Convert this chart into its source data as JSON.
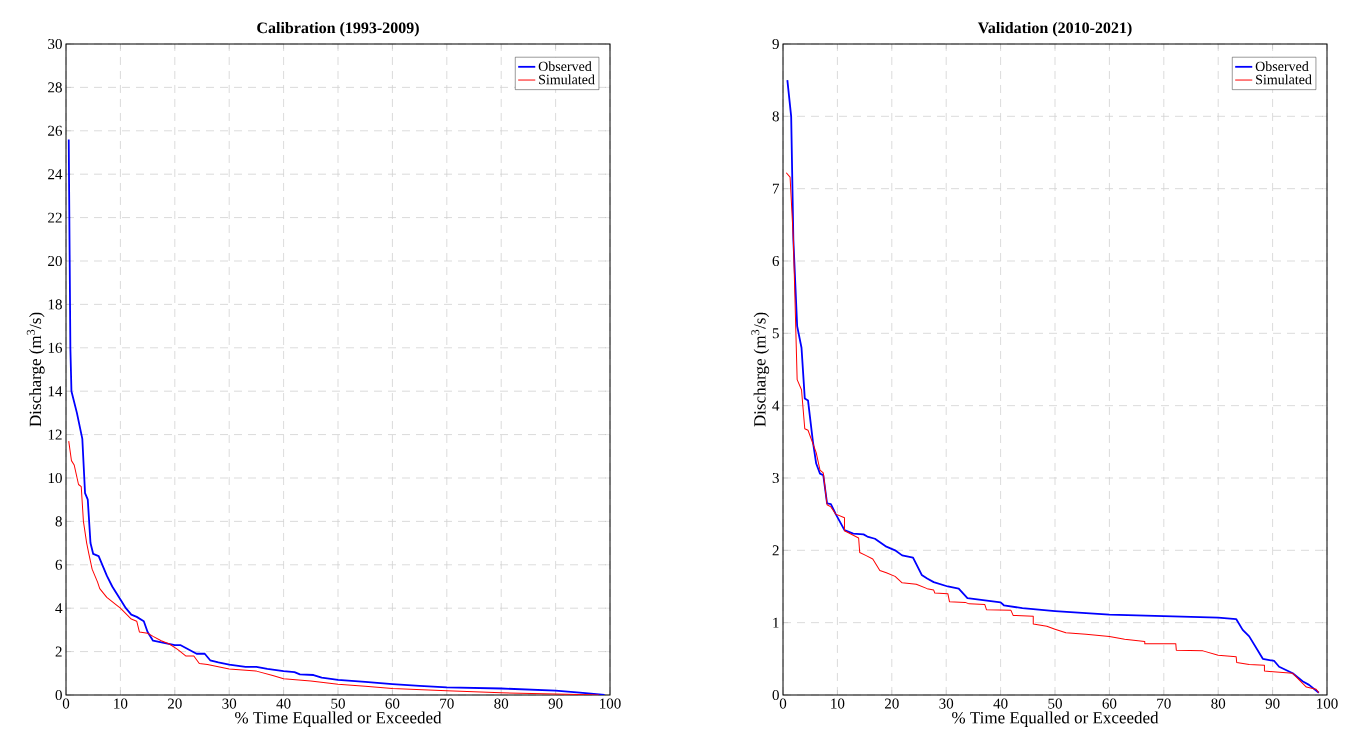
{
  "chart_data": [
    {
      "type": "line",
      "title": "Calibration (1993-2009)",
      "xlabel": "% Time Equalled or Exceeded",
      "ylabel": "Discharge (m$^{3}$/s)",
      "xlim": [
        0,
        100
      ],
      "ylim": [
        0,
        30
      ],
      "xticks": [
        0,
        10,
        20,
        30,
        40,
        50,
        60,
        70,
        80,
        90,
        100
      ],
      "yticks": [
        0,
        2,
        4,
        6,
        8,
        10,
        12,
        14,
        16,
        18,
        20,
        22,
        24,
        26,
        28,
        30
      ],
      "grid": true,
      "legend": "top right",
      "series": [
        {
          "name": "Observed",
          "color": "#0000ff",
          "x": [
            0.5,
            0.8,
            1,
            2,
            3,
            3.5,
            4,
            4.5,
            5,
            6,
            7.5,
            8.5,
            10,
            11,
            12,
            13,
            14.3,
            15,
            16,
            18,
            20,
            21,
            22.5,
            24,
            25.5,
            26.5,
            28,
            30,
            33,
            35,
            37,
            40,
            42,
            43,
            45.5,
            47,
            50,
            55,
            60,
            65,
            70,
            80,
            90,
            95,
            99
          ],
          "values": [
            25.6,
            16,
            14,
            13,
            11.8,
            9.3,
            9,
            7,
            6.5,
            6.4,
            5.5,
            5,
            4.4,
            4,
            3.7,
            3.6,
            3.4,
            2.9,
            2.5,
            2.4,
            2.3,
            2.3,
            2.1,
            1.9,
            1.9,
            1.6,
            1.5,
            1.4,
            1.3,
            1.3,
            1.2,
            1.1,
            1.05,
            0.95,
            0.92,
            0.8,
            0.7,
            0.6,
            0.5,
            0.42,
            0.35,
            0.3,
            0.2,
            0.1,
            0
          ]
        },
        {
          "name": "Simulated",
          "color": "#ff0000",
          "x": [
            0.5,
            1,
            1.5,
            2.3,
            2.8,
            3.2,
            3.8,
            4.2,
            4.8,
            5.8,
            6.2,
            7.5,
            9,
            10,
            12,
            13,
            13.5,
            15,
            16,
            17.5,
            19,
            20.5,
            22,
            23.5,
            24.5,
            26,
            28,
            30,
            35,
            38,
            40,
            45,
            50,
            55,
            60,
            70,
            80,
            90,
            98
          ],
          "values": [
            11.7,
            10.8,
            10.6,
            9.7,
            9.6,
            8,
            7,
            6.5,
            5.8,
            5.2,
            4.9,
            4.5,
            4.2,
            4,
            3.5,
            3.4,
            2.9,
            2.85,
            2.7,
            2.5,
            2.35,
            2.1,
            1.8,
            1.8,
            1.45,
            1.4,
            1.3,
            1.2,
            1.1,
            0.9,
            0.75,
            0.65,
            0.5,
            0.4,
            0.3,
            0.2,
            0.1,
            0.05,
            0
          ]
        }
      ]
    },
    {
      "type": "line",
      "title": "Validation (2010-2021)",
      "xlabel": "% Time Equalled or Exceeded",
      "ylabel": "Discharge (m$^{3}$/s)",
      "xlim": [
        0,
        100
      ],
      "ylim": [
        0,
        9
      ],
      "xticks": [
        0,
        10,
        20,
        30,
        40,
        50,
        60,
        70,
        80,
        90,
        100
      ],
      "yticks": [
        0,
        1,
        2,
        3,
        4,
        5,
        6,
        7,
        8,
        9
      ],
      "grid": true,
      "legend": "top right",
      "series": [
        {
          "name": "Observed",
          "color": "#0000ff",
          "x": [
            0.8,
            1.5,
            1.9,
            2.6,
            3.4,
            4,
            4.6,
            5.5,
            6.1,
            6.8,
            7.4,
            8.1,
            8.8,
            9.7,
            11.3,
            12.9,
            14.8,
            15.5,
            16.9,
            19,
            20.6,
            21.9,
            23.9,
            25.5,
            26.5,
            27.7,
            30.3,
            32.3,
            33.9,
            40,
            40.6,
            44,
            50,
            60,
            70,
            80,
            83.3,
            84.5,
            85.7,
            88.2,
            90.3,
            91.2,
            93.7,
            95.5,
            96.7,
            98.5
          ],
          "values": [
            8.5,
            8,
            6.3,
            5.1,
            4.8,
            4.1,
            4.07,
            3.5,
            3.2,
            3.06,
            3.04,
            2.65,
            2.64,
            2.5,
            2.28,
            2.23,
            2.22,
            2.19,
            2.16,
            2.05,
            2,
            1.93,
            1.9,
            1.66,
            1.61,
            1.56,
            1.5,
            1.47,
            1.34,
            1.28,
            1.24,
            1.2,
            1.16,
            1.11,
            1.09,
            1.07,
            1.05,
            0.9,
            0.81,
            0.5,
            0.47,
            0.39,
            0.3,
            0.19,
            0.14,
            0.03
          ]
        },
        {
          "name": "Simulated",
          "color": "#ff0000",
          "x": [
            0.6,
            1.3,
            1.9,
            2.6,
            3.4,
            4,
            4.6,
            6.1,
            6.8,
            7.4,
            8.1,
            8.8,
            9.7,
            11.3,
            11.3,
            13.9,
            14.1,
            15.2,
            16.5,
            17.8,
            19,
            20.6,
            21.9,
            24.5,
            26.5,
            27.7,
            27.9,
            30.3,
            30.6,
            33.5,
            34.2,
            37.1,
            37.4,
            41.9,
            42.3,
            46,
            46,
            48.5,
            50,
            52,
            55.7,
            60,
            62.8,
            66.5,
            66.5,
            72.2,
            72.3,
            77.2,
            80,
            83.3,
            83.4,
            85.7,
            88.5,
            88.5,
            93.7,
            96.2,
            98,
            98.5
          ],
          "values": [
            7.22,
            7.16,
            6.3,
            4.36,
            4.22,
            3.68,
            3.66,
            3.35,
            3.11,
            3.07,
            2.63,
            2.6,
            2.5,
            2.45,
            2.27,
            2.17,
            1.97,
            1.93,
            1.88,
            1.72,
            1.69,
            1.64,
            1.55,
            1.53,
            1.47,
            1.45,
            1.41,
            1.4,
            1.29,
            1.28,
            1.26,
            1.25,
            1.18,
            1.17,
            1.1,
            1.09,
            0.98,
            0.95,
            0.91,
            0.86,
            0.84,
            0.81,
            0.77,
            0.74,
            0.71,
            0.71,
            0.62,
            0.61,
            0.55,
            0.53,
            0.45,
            0.42,
            0.41,
            0.33,
            0.3,
            0.11,
            0.08,
            0.03
          ]
        }
      ]
    }
  ]
}
